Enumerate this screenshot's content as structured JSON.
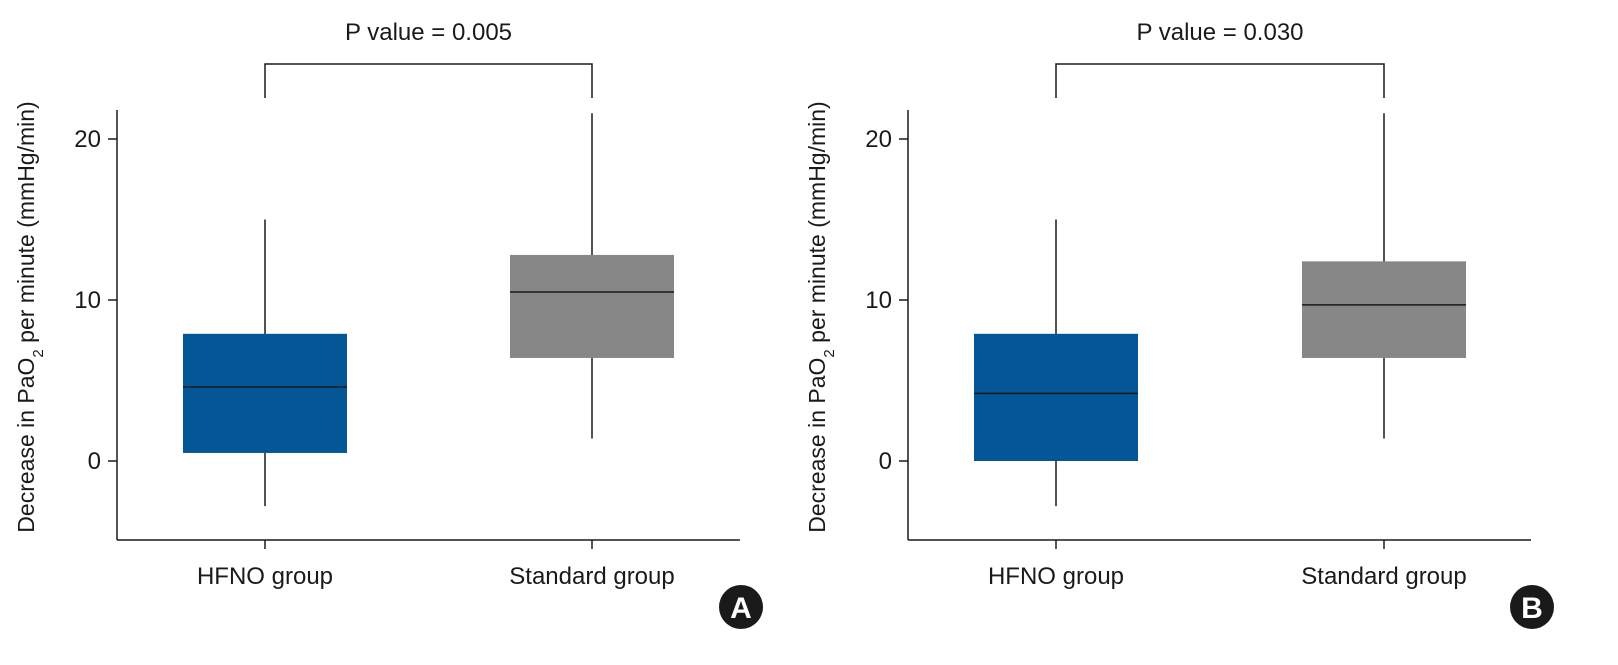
{
  "colors": {
    "hfno": "#045796",
    "standard": "#878787",
    "line": "#1a1a1a",
    "badge": "#1a1a1a"
  },
  "chart_data": [
    {
      "type": "boxplot",
      "panel": "A",
      "title": "P value = 0.005",
      "xlabel": "",
      "ylabel": "Decrease in PaO",
      "ylabel_sub": "2",
      "ylabel_tail": " per minute (mmHg/min)",
      "ylim": [
        -4.8,
        21.8
      ],
      "yticks": [
        0,
        10,
        20
      ],
      "categories": [
        "HFNO group",
        "Standard group"
      ],
      "boxes": [
        {
          "name": "HFNO group",
          "whisker_low": -2.8,
          "q1": 0.5,
          "median": 4.6,
          "q3": 7.9,
          "whisker_high": 15.0,
          "color_key": "hfno"
        },
        {
          "name": "Standard group",
          "whisker_low": 1.4,
          "q1": 6.4,
          "median": 10.5,
          "q3": 12.8,
          "whisker_high": 21.6,
          "color_key": "standard"
        }
      ]
    },
    {
      "type": "boxplot",
      "panel": "B",
      "title": "P value = 0.030",
      "xlabel": "",
      "ylabel": "Decrease in PaO",
      "ylabel_sub": "2",
      "ylabel_tail": " per minute (mmHg/min)",
      "ylim": [
        -4.8,
        21.8
      ],
      "yticks": [
        0,
        10,
        20
      ],
      "categories": [
        "HFNO group",
        "Standard group"
      ],
      "boxes": [
        {
          "name": "HFNO group",
          "whisker_low": -2.8,
          "q1": 0.0,
          "median": 4.2,
          "q3": 7.9,
          "whisker_high": 15.0,
          "color_key": "hfno"
        },
        {
          "name": "Standard group",
          "whisker_low": 1.4,
          "q1": 6.4,
          "median": 9.7,
          "q3": 12.4,
          "whisker_high": 21.6,
          "color_key": "standard"
        }
      ]
    }
  ]
}
